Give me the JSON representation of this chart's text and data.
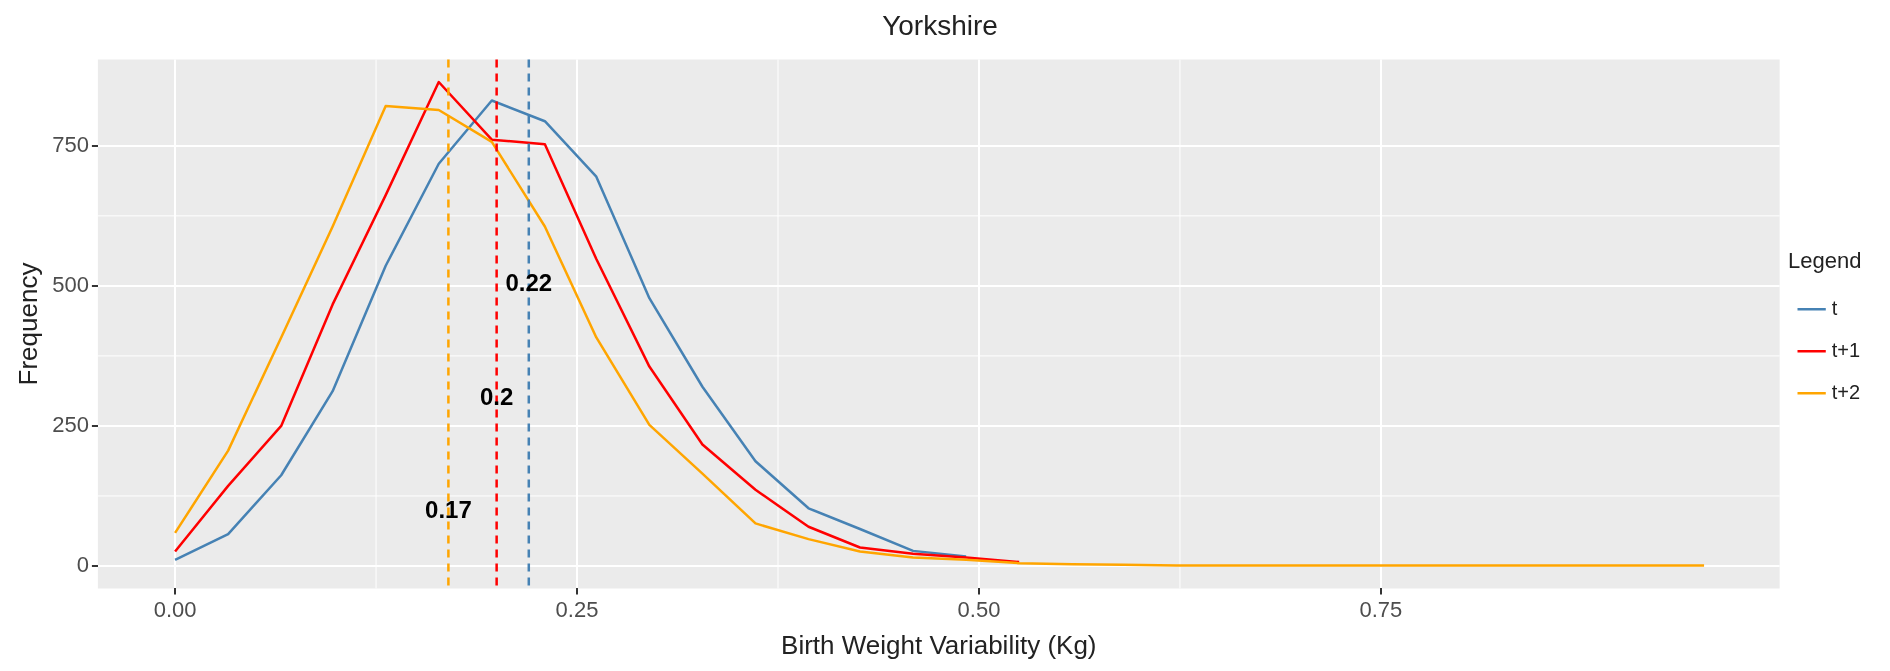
{
  "chart_data": {
    "type": "line",
    "title": "Yorkshire",
    "xlabel": "Birth Weight Variability (Kg)",
    "ylabel": "Frequency",
    "legend_title": "Legend",
    "x": [
      0,
      0.033,
      0.066,
      0.098,
      0.131,
      0.164,
      0.197,
      0.23,
      0.262,
      0.295,
      0.328,
      0.361,
      0.394,
      0.426,
      0.459,
      0.492,
      0.525,
      0.558,
      0.59,
      0.623,
      0.656,
      0.689,
      0.722,
      0.754,
      0.787,
      0.82,
      0.853,
      0.886,
      0.918,
      0.951
    ],
    "series": [
      {
        "name": "t",
        "color": "#4682b4",
        "values": [
          11,
          57,
          162,
          312,
          536,
          718,
          831,
          794,
          695,
          478,
          320,
          187,
          103,
          66,
          27,
          17,
          null,
          null,
          null,
          null,
          null,
          null,
          null,
          null,
          null,
          null,
          null,
          null,
          null,
          null
        ]
      },
      {
        "name": "t+1",
        "color": "#ff0000",
        "values": [
          26,
          143,
          250,
          467,
          662,
          864,
          761,
          753,
          548,
          356,
          217,
          136,
          70,
          33,
          22,
          15,
          7,
          null,
          null,
          null,
          null,
          null,
          null,
          null,
          null,
          null,
          null,
          null,
          null,
          null
        ]
      },
      {
        "name": "t+2",
        "color": "#ffa500",
        "values": [
          59,
          206,
          408,
          606,
          821,
          814,
          757,
          606,
          408,
          252,
          165,
          76,
          48,
          26,
          15,
          11,
          5,
          3,
          2,
          1,
          1,
          1,
          1,
          1,
          1,
          1,
          1,
          1,
          1,
          1
        ]
      }
    ],
    "xlim": [
      -0.048,
      0.998
    ],
    "ylim": [
      -40,
      904
    ],
    "xticks": [
      {
        "value": 0,
        "label": "0.00"
      },
      0.25,
      {
        "value": 0.5,
        "label": "0.50"
      },
      0.75
    ],
    "yticks": [
      0,
      250,
      500,
      750
    ],
    "ref_lines": [
      {
        "axis": "x",
        "value": 0.17,
        "color": "#ffa500",
        "line_style": "dashed"
      },
      {
        "axis": "x",
        "value": 0.2,
        "color": "#ff0000",
        "line_style": "dashed"
      },
      {
        "axis": "x",
        "value": 0.22,
        "color": "#4682b4",
        "line_style": "dashed"
      }
    ],
    "annotations": [
      {
        "text": "0.22",
        "x": 0.22,
        "y": 502
      },
      {
        "text": "0.2",
        "x": 0.2,
        "y": 299
      },
      {
        "text": "0.17",
        "x": 0.17,
        "y": 98
      }
    ],
    "grid": true,
    "legend": "right",
    "marker": "none",
    "line_style": "solid"
  }
}
